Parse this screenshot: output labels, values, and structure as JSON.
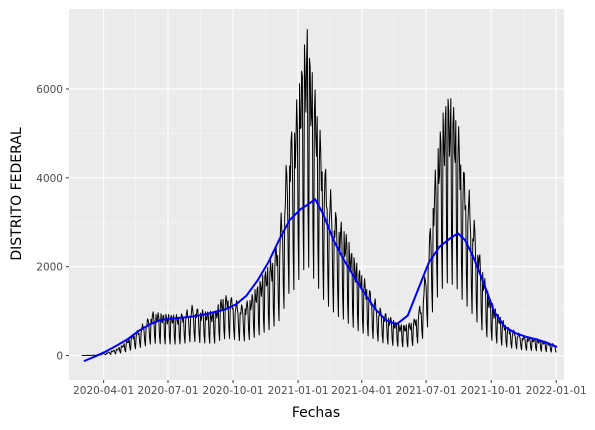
{
  "chart_data": {
    "type": "line",
    "xlabel": "Fechas",
    "ylabel": "DISTRITO FEDERAL",
    "x_tick_labels": [
      "2020-04-01",
      "2020-07-01",
      "2020-10-01",
      "2021-01-01",
      "2021-04-01",
      "2021-07-01",
      "2021-10-01",
      "2022-01-01"
    ],
    "x_tick_dates": [
      "2020-04-01",
      "2020-07-01",
      "2020-10-01",
      "2021-01-01",
      "2021-04-01",
      "2021-07-01",
      "2021-10-01",
      "2022-01-01"
    ],
    "y_ticks": [
      0,
      2000,
      4000,
      6000
    ],
    "xlim": [
      "2020-02-12",
      "2022-01-12"
    ],
    "ylim": [
      -550,
      7800
    ],
    "grid": true,
    "series": [
      {
        "kind": "daily",
        "color": "#000000",
        "points": [
          [
            "2020-03-01",
            0
          ],
          [
            "2020-03-20",
            10
          ],
          [
            "2020-04-05",
            60
          ],
          [
            "2020-04-20",
            150
          ],
          [
            "2020-05-01",
            280
          ],
          [
            "2020-05-10",
            450
          ],
          [
            "2020-05-20",
            600
          ],
          [
            "2020-06-01",
            820
          ],
          [
            "2020-06-10",
            1000
          ],
          [
            "2020-06-20",
            950
          ],
          [
            "2020-07-01",
            930
          ],
          [
            "2020-07-15",
            920
          ],
          [
            "2020-07-25",
            1000
          ],
          [
            "2020-08-05",
            1150
          ],
          [
            "2020-08-15",
            1050
          ],
          [
            "2020-08-25",
            1000
          ],
          [
            "2020-09-05",
            1000
          ],
          [
            "2020-09-15",
            1300
          ],
          [
            "2020-09-25",
            1400
          ],
          [
            "2020-10-05",
            1250
          ],
          [
            "2020-10-15",
            1150
          ],
          [
            "2020-10-25",
            1300
          ],
          [
            "2020-11-05",
            1600
          ],
          [
            "2020-11-15",
            1900
          ],
          [
            "2020-11-25",
            2200
          ],
          [
            "2020-12-05",
            2800
          ],
          [
            "2020-12-12",
            3800
          ],
          [
            "2020-12-19",
            5000
          ],
          [
            "2020-12-26",
            5300
          ],
          [
            "2021-01-02",
            6100
          ],
          [
            "2021-01-08",
            6800
          ],
          [
            "2021-01-14",
            7400
          ],
          [
            "2021-01-20",
            6500
          ],
          [
            "2021-01-27",
            5800
          ],
          [
            "2021-02-05",
            4600
          ],
          [
            "2021-02-15",
            3800
          ],
          [
            "2021-02-25",
            3200
          ],
          [
            "2021-03-07",
            2900
          ],
          [
            "2021-03-17",
            2400
          ],
          [
            "2021-03-27",
            2000
          ],
          [
            "2021-04-06",
            1700
          ],
          [
            "2021-04-16",
            1400
          ],
          [
            "2021-04-26",
            1100
          ],
          [
            "2021-05-06",
            950
          ],
          [
            "2021-05-16",
            800
          ],
          [
            "2021-05-26",
            700
          ],
          [
            "2021-06-05",
            700
          ],
          [
            "2021-06-15",
            850
          ],
          [
            "2021-06-25",
            1250
          ],
          [
            "2021-07-03",
            2300
          ],
          [
            "2021-07-10",
            3500
          ],
          [
            "2021-07-17",
            4700
          ],
          [
            "2021-07-24",
            5400
          ],
          [
            "2021-08-01",
            5900
          ],
          [
            "2021-08-08",
            5700
          ],
          [
            "2021-08-15",
            5300
          ],
          [
            "2021-08-22",
            4400
          ],
          [
            "2021-08-29",
            3900
          ],
          [
            "2021-09-05",
            3300
          ],
          [
            "2021-09-15",
            2300
          ],
          [
            "2021-09-25",
            1500
          ],
          [
            "2021-10-05",
            1100
          ],
          [
            "2021-10-15",
            850
          ],
          [
            "2021-10-25",
            650
          ],
          [
            "2021-11-05",
            550
          ],
          [
            "2021-11-15",
            450
          ],
          [
            "2021-11-25",
            400
          ],
          [
            "2021-12-05",
            380
          ],
          [
            "2021-12-15",
            330
          ],
          [
            "2021-12-25",
            280
          ],
          [
            "2022-01-01",
            250
          ]
        ]
      },
      {
        "kind": "trend",
        "color": "#0000ff",
        "points": [
          [
            "2020-03-05",
            -120
          ],
          [
            "2020-03-20",
            -20
          ],
          [
            "2020-04-05",
            100
          ],
          [
            "2020-04-20",
            230
          ],
          [
            "2020-05-05",
            370
          ],
          [
            "2020-05-20",
            550
          ],
          [
            "2020-06-05",
            700
          ],
          [
            "2020-06-20",
            800
          ],
          [
            "2020-07-05",
            830
          ],
          [
            "2020-07-20",
            850
          ],
          [
            "2020-08-05",
            880
          ],
          [
            "2020-08-20",
            920
          ],
          [
            "2020-09-05",
            980
          ],
          [
            "2020-09-20",
            1040
          ],
          [
            "2020-10-05",
            1150
          ],
          [
            "2020-10-20",
            1350
          ],
          [
            "2020-11-05",
            1700
          ],
          [
            "2020-11-20",
            2100
          ],
          [
            "2020-12-05",
            2600
          ],
          [
            "2020-12-20",
            3050
          ],
          [
            "2021-01-05",
            3300
          ],
          [
            "2021-01-15",
            3400
          ],
          [
            "2021-01-25",
            3520
          ],
          [
            "2021-02-05",
            3200
          ],
          [
            "2021-02-20",
            2600
          ],
          [
            "2021-03-05",
            2200
          ],
          [
            "2021-03-20",
            1800
          ],
          [
            "2021-04-05",
            1400
          ],
          [
            "2021-04-20",
            1050
          ],
          [
            "2021-05-05",
            800
          ],
          [
            "2021-05-20",
            700
          ],
          [
            "2021-06-05",
            900
          ],
          [
            "2021-06-20",
            1500
          ],
          [
            "2021-07-05",
            2100
          ],
          [
            "2021-07-20",
            2450
          ],
          [
            "2021-08-05",
            2650
          ],
          [
            "2021-08-15",
            2750
          ],
          [
            "2021-08-25",
            2600
          ],
          [
            "2021-09-05",
            2250
          ],
          [
            "2021-09-20",
            1650
          ],
          [
            "2021-10-05",
            1000
          ],
          [
            "2021-10-20",
            650
          ],
          [
            "2021-11-05",
            500
          ],
          [
            "2021-11-20",
            420
          ],
          [
            "2021-12-05",
            360
          ],
          [
            "2021-12-20",
            280
          ],
          [
            "2022-01-01",
            200
          ]
        ]
      }
    ]
  }
}
